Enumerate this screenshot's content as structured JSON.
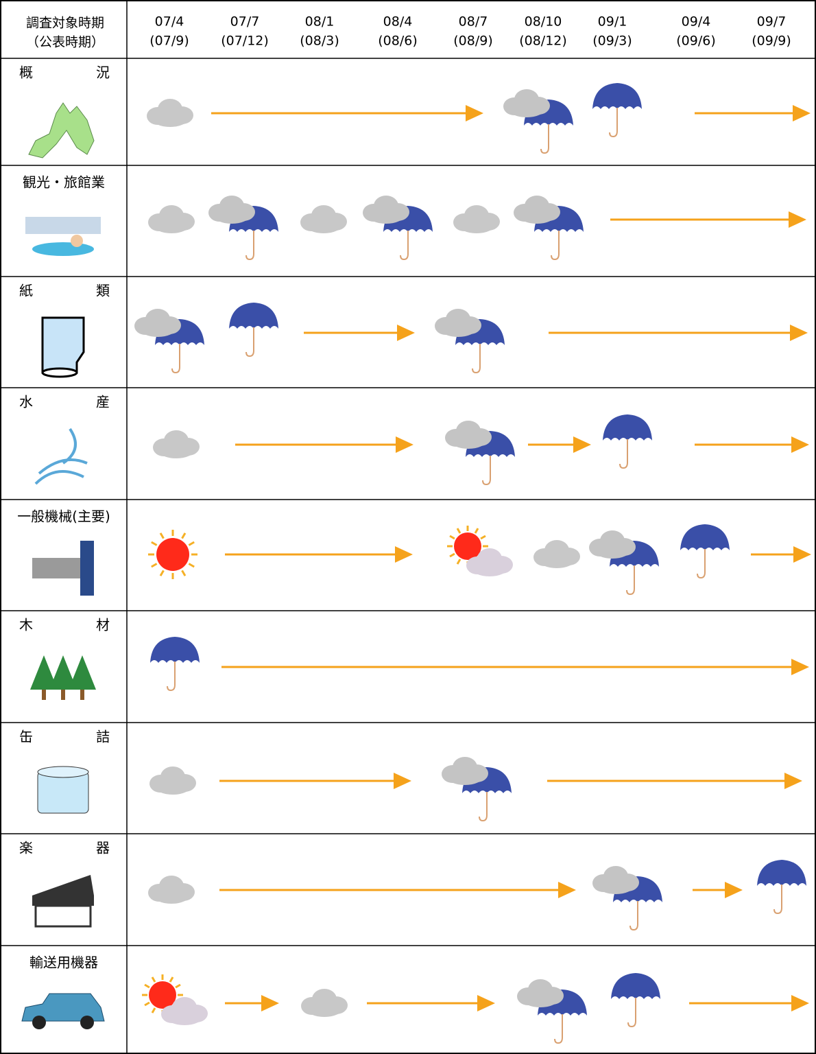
{
  "header": {
    "title": "調査対象時期",
    "subtitle": "（公表時期）"
  },
  "periods": [
    {
      "date": "07/4",
      "published": "(07/9)"
    },
    {
      "date": "07/7",
      "published": "(07/12)"
    },
    {
      "date": "08/1",
      "published": "(08/3)"
    },
    {
      "date": "08/4",
      "published": "(08/6)"
    },
    {
      "date": "08/7",
      "published": "(08/9)"
    },
    {
      "date": "08/10",
      "published": "(08/12)"
    },
    {
      "date": "09/1",
      "published": "(09/3)"
    },
    {
      "date": "09/4",
      "published": "(09/6)"
    },
    {
      "date": "09/7",
      "published": "(09/9)"
    }
  ],
  "rows": [
    {
      "label": [
        "概",
        "況"
      ]
    },
    {
      "label": [
        "観光・旅館業"
      ]
    },
    {
      "label": [
        "紙",
        "類"
      ]
    },
    {
      "label": [
        "水",
        "産"
      ]
    },
    {
      "label": [
        "一般機械(主要)"
      ]
    },
    {
      "label": [
        "木",
        "材"
      ]
    },
    {
      "label": [
        "缶",
        "詰"
      ]
    },
    {
      "label": [
        "楽",
        "器"
      ]
    },
    {
      "label": [
        "輸送用機器"
      ]
    }
  ]
}
